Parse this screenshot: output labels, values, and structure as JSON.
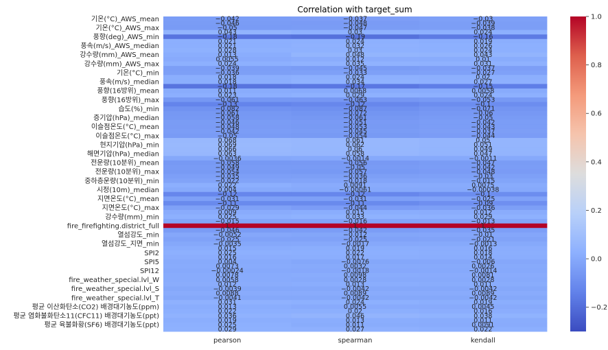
{
  "chart_data": {
    "type": "heatmap",
    "title": "Correlation with target_sum",
    "columns": [
      "pearson",
      "spearman",
      "kendall"
    ],
    "rows": [
      {
        "name": "기온(°C)_AWS_mean",
        "values": [
          -0.042,
          -0.037,
          -0.03
        ]
      },
      {
        "name": "",
        "values": [
          -0.046,
          -0.048,
          -0.039
        ]
      },
      {
        "name": "기온(°C)_AWS_max",
        "values": [
          -0.05,
          -0.047,
          -0.038
        ]
      },
      {
        "name": "",
        "values": [
          0.043,
          0.03,
          0.024
        ]
      },
      {
        "name": "풍향(deg)_AWS_min",
        "values": [
          -0.18,
          -0.19,
          -0.16
        ]
      },
      {
        "name": "",
        "values": [
          0.021,
          0.024,
          0.019
        ]
      },
      {
        "name": "풍속(m/s)_AWS_median",
        "values": [
          0.021,
          0.032,
          0.026
        ]
      },
      {
        "name": "",
        "values": [
          0.028,
          0.03,
          0.024
        ]
      },
      {
        "name": "강수량(mm)_AWS_mean",
        "values": [
          0.013,
          0.048,
          0.043
        ]
      },
      {
        "name": "",
        "values": [
          0.0055,
          0.012,
          0.01
        ]
      },
      {
        "name": "강수량(mm)_AWS_max",
        "values": [
          0.024,
          0.035,
          0.031
        ]
      },
      {
        "name": "",
        "values": [
          -0.039,
          -0.045,
          -0.037
        ]
      },
      {
        "name": "기온(°C)_min",
        "values": [
          -0.036,
          -0.033,
          -0.027
        ]
      },
      {
        "name": "",
        "values": [
          0.018,
          0.024,
          0.02
        ]
      },
      {
        "name": "풍속(m/s)_median",
        "values": [
          0.018,
          0.034,
          0.027
        ]
      },
      {
        "name": "",
        "values": [
          -0.18,
          -0.17,
          -0.15
        ]
      },
      {
        "name": "풍향(16방위)_mean",
        "values": [
          0.011,
          0.0068,
          0.0058
        ]
      },
      {
        "name": "",
        "values": [
          0.023,
          0.029,
          0.024
        ]
      },
      {
        "name": "풍향(16방위)_max",
        "values": [
          -0.061,
          -0.063,
          -0.053
        ]
      },
      {
        "name": "",
        "values": [
          -0.13,
          -0.12,
          -0.1
        ]
      },
      {
        "name": "습도(%)_min",
        "values": [
          -0.082,
          -0.087,
          -0.071
        ]
      },
      {
        "name": "",
        "values": [
          -0.061,
          -0.072,
          -0.06
        ]
      },
      {
        "name": "증기압(hPa)_median",
        "values": [
          -0.058,
          -0.061,
          -0.05
        ]
      },
      {
        "name": "",
        "values": [
          -0.046,
          -0.051,
          -0.042
        ]
      },
      {
        "name": "이슬점온도(°C)_mean",
        "values": [
          -0.048,
          -0.053,
          -0.043
        ]
      },
      {
        "name": "",
        "values": [
          -0.042,
          -0.045,
          -0.037
        ]
      },
      {
        "name": "이슬점온도(°C)_max",
        "values": [
          -0.05,
          -0.054,
          -0.044
        ]
      },
      {
        "name": "",
        "values": [
          0.068,
          0.061,
          0.05
        ]
      },
      {
        "name": "현지기압(hPa)_min",
        "values": [
          0.069,
          0.062,
          0.051
        ]
      },
      {
        "name": "",
        "values": [
          0.066,
          0.06,
          0.049
        ]
      },
      {
        "name": "해면기압(hPa)_median",
        "values": [
          0.063,
          0.058,
          0.047
        ]
      },
      {
        "name": "",
        "values": [
          -0.0036,
          -0.0014,
          -0.0011
        ]
      },
      {
        "name": "전운량(10분위)_mean",
        "values": [
          -0.058,
          -0.056,
          -0.047
        ]
      },
      {
        "name": "",
        "values": [
          -0.049,
          -0.05,
          -0.042
        ]
      },
      {
        "name": "전운량(10분위)_max",
        "values": [
          -0.054,
          -0.057,
          -0.048
        ]
      },
      {
        "name": "",
        "values": [
          -0.035,
          -0.036,
          -0.03
        ]
      },
      {
        "name": "중하층운량(10분위)_min",
        "values": [
          -0.022,
          -0.018,
          -0.015
        ]
      },
      {
        "name": "",
        "values": [
          0.022,
          0.0091,
          0.0075
        ]
      },
      {
        "name": "시정(10m)_median",
        "values": [
          0.004,
          -0.00061,
          -0.00038
        ]
      },
      {
        "name": "",
        "values": [
          -0.12,
          -0.12,
          -0.1
        ]
      },
      {
        "name": "지면온도(°C)_mean",
        "values": [
          -0.031,
          -0.031,
          -0.025
        ]
      },
      {
        "name": "",
        "values": [
          -0.11,
          -0.11,
          -0.09
        ]
      },
      {
        "name": "지면온도(°C)_max",
        "values": [
          -0.029,
          -0.044,
          -0.036
        ]
      },
      {
        "name": "",
        "values": [
          0.009,
          0.015,
          0.012
        ]
      },
      {
        "name": "강수량(mm)_min",
        "values": [
          0.025,
          0.033,
          0.029
        ]
      },
      {
        "name": "",
        "values": [
          -0.015,
          -0.016,
          -0.013
        ]
      },
      {
        "name": "fire_firefighting.district_full",
        "values": [
          1,
          1,
          1
        ]
      },
      {
        "name": "",
        "values": [
          -0.046,
          -0.042,
          -0.035
        ]
      },
      {
        "name": "열섬강도_min",
        "values": [
          -0.0052,
          -0.012,
          -0.01
        ]
      },
      {
        "name": "",
        "values": [
          -0.025,
          -0.025,
          -0.021
        ]
      },
      {
        "name": "열섬강도_지면_min",
        "values": [
          -0.0035,
          -0.0017,
          -0.0013
        ]
      },
      {
        "name": "",
        "values": [
          0.015,
          0.019,
          0.016
        ]
      },
      {
        "name": "SPI2",
        "values": [
          0.025,
          0.022,
          0.018
        ]
      },
      {
        "name": "",
        "values": [
          0.016,
          0.017,
          0.014
        ]
      },
      {
        "name": "SPI5",
        "values": [
          0.004,
          -0.0076,
          -0.006
        ]
      },
      {
        "name": "",
        "values": [
          0.0073,
          0.0032,
          0.0026
        ]
      },
      {
        "name": "SPI12",
        "values": [
          -0.00024,
          -0.0018,
          -0.0014
        ]
      },
      {
        "name": "",
        "values": [
          0.0078,
          0.0098,
          0.0081
        ]
      },
      {
        "name": "fire_weather_special.lvl_W",
        "values": [
          0.0058,
          0.0028,
          0.0028
        ]
      },
      {
        "name": "",
        "values": [
          0.012,
          0.013,
          0.011
        ]
      },
      {
        "name": "fire_weather_special.lvl_S",
        "values": [
          -0.0039,
          -0.0042,
          -0.0042
        ]
      },
      {
        "name": "",
        "values": [
          0.0088,
          0.0089,
          0.0089
        ]
      },
      {
        "name": "fire_weather_special.lvl_T",
        "values": [
          -0.0041,
          -0.0042,
          -0.0042
        ]
      },
      {
        "name": "",
        "values": [
          0.031,
          0.024,
          0.019
        ]
      },
      {
        "name": "평균 이산화탄소(CO2) 배경대기농도(ppm)",
        "values": [
          0.013,
          0.0055,
          0.0045
        ]
      },
      {
        "name": "",
        "values": [
          0.022,
          0.02,
          0.016
        ]
      },
      {
        "name": "평균 염화불화탄소11(CFC11) 배경대기농도(ppt)",
        "values": [
          0.036,
          0.046,
          0.038
        ]
      },
      {
        "name": "",
        "values": [
          0.019,
          0.013,
          0.011
        ]
      },
      {
        "name": "평균 육불화황(SF6) 배경대기농도(ppt)",
        "values": [
          0.025,
          0.011,
          0.0091
        ]
      },
      {
        "name": "",
        "values": [
          0.029,
          0.027,
          0.022
        ]
      }
    ],
    "colorbar": {
      "colormap": "coolwarm",
      "vmin": -0.3,
      "vmax": 1.0,
      "ticks": [
        -0.2,
        0.0,
        0.2,
        0.4,
        0.6,
        0.8,
        1.0
      ],
      "tick_labels": [
        "−0.2",
        "0.0",
        "0.2",
        "0.4",
        "0.6",
        "0.8",
        "1.0"
      ]
    },
    "annotated": true,
    "grid": false
  }
}
